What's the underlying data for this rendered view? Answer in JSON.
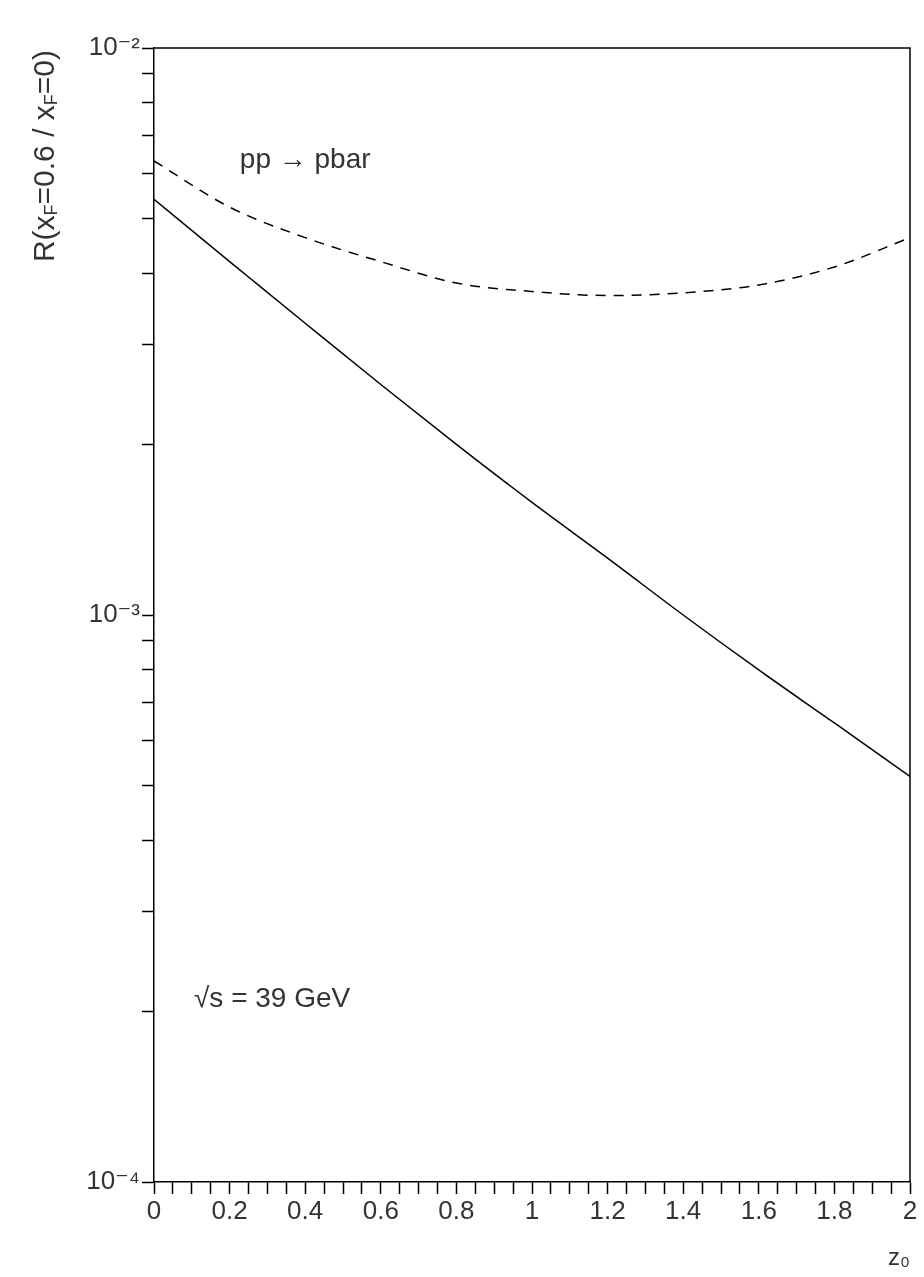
{
  "chart_data": {
    "type": "line",
    "xlabel": "z₀",
    "ylabel": "R(x$_{F}$=0.6 / x$_{F}$=0)",
    "log": "y",
    "grid": false,
    "legend": false,
    "marker": "none",
    "x": [
      0,
      0.2,
      0.4,
      0.6,
      0.8,
      1.0,
      1.2,
      1.4,
      1.6,
      1.8,
      2.0
    ],
    "series": [
      {
        "name": "pp → pbar",
        "color": "#000000",
        "line_style": "dashed",
        "values": [
          0.00632,
          0.00524,
          0.00463,
          0.0042,
          0.00385,
          0.00372,
          0.00366,
          0.0037,
          0.00382,
          0.00411,
          0.00463
        ]
      },
      {
        "color": "#000000",
        "line_style": "solid",
        "values": [
          0.00541,
          0.0042,
          0.00327,
          0.00255,
          0.002,
          0.00158,
          0.00126,
          0.001,
          0.0008,
          0.000645,
          0.000519
        ]
      }
    ],
    "xlim": [
      0,
      2
    ],
    "xticks": [
      0,
      {
        "value": 0.05,
        "label": null
      },
      {
        "value": 0.1,
        "label": null
      },
      {
        "value": 0.15,
        "label": null
      },
      0.2,
      {
        "value": 0.25,
        "label": null
      },
      {
        "value": 0.3,
        "label": null
      },
      {
        "value": 0.35,
        "label": null
      },
      0.4,
      {
        "value": 0.45,
        "label": null
      },
      {
        "value": 0.5,
        "label": null
      },
      {
        "value": 0.55,
        "label": null
      },
      0.6,
      {
        "value": 0.65,
        "label": null
      },
      {
        "value": 0.7,
        "label": null
      },
      {
        "value": 0.75,
        "label": null
      },
      0.8,
      {
        "value": 0.85,
        "label": null
      },
      {
        "value": 0.9,
        "label": null
      },
      {
        "value": 0.95,
        "label": null
      },
      1,
      {
        "value": 1.05,
        "label": null
      },
      {
        "value": 1.1,
        "label": null
      },
      {
        "value": 1.15,
        "label": null
      },
      1.2,
      {
        "value": 1.25,
        "label": null
      },
      {
        "value": 1.3,
        "label": null
      },
      {
        "value": 1.35,
        "label": null
      },
      1.4,
      {
        "value": 1.45,
        "label": null
      },
      {
        "value": 1.5,
        "label": null
      },
      {
        "value": 1.55,
        "label": null
      },
      1.6,
      {
        "value": 1.65,
        "label": null
      },
      {
        "value": 1.7,
        "label": null
      },
      {
        "value": 1.75,
        "label": null
      },
      1.8,
      {
        "value": 1.85,
        "label": null
      },
      {
        "value": 1.9,
        "label": null
      },
      {
        "value": 1.95,
        "label": null
      },
      2
    ],
    "ylim": [
      0.0001,
      0.01
    ],
    "yticks": [
      {
        "value": 0.0001,
        "label": "10⁻⁴"
      },
      {
        "value": 0.0002,
        "label": null
      },
      {
        "value": 0.0003,
        "label": null
      },
      {
        "value": 0.0004,
        "label": null
      },
      {
        "value": 0.0005,
        "label": null
      },
      {
        "value": 0.0006,
        "label": null
      },
      {
        "value": 0.0007,
        "label": null
      },
      {
        "value": 0.0008,
        "label": null
      },
      {
        "value": 0.0009,
        "label": null
      },
      {
        "value": 0.001,
        "label": "10⁻³"
      },
      {
        "value": 0.002,
        "label": null
      },
      {
        "value": 0.003,
        "label": null
      },
      {
        "value": 0.004,
        "label": null
      },
      {
        "value": 0.005,
        "label": null
      },
      {
        "value": 0.006,
        "label": null
      },
      {
        "value": 0.007,
        "label": null
      },
      {
        "value": 0.008,
        "label": null
      },
      {
        "value": 0.009,
        "label": null
      },
      {
        "value": 0.01,
        "label": "10⁻²"
      }
    ],
    "annotations": [
      "√s = 39 GeV"
    ]
  }
}
